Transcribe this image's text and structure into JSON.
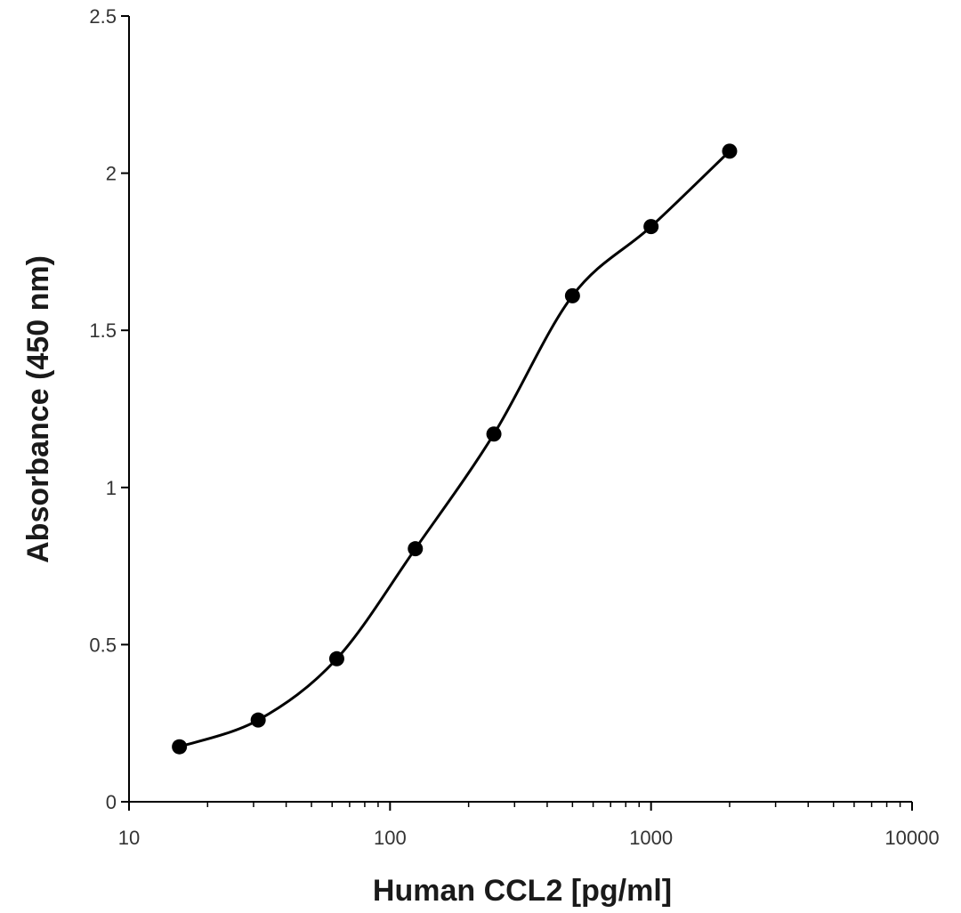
{
  "chart_data": {
    "type": "line",
    "title": "",
    "xlabel": "Human CCL2 [pg/ml]",
    "ylabel": "Absorbance (450 nm)",
    "x_scale": "log",
    "xlim": [
      10,
      10000
    ],
    "ylim": [
      0,
      2.5
    ],
    "x_ticks": [
      "10",
      "100",
      "1000",
      "10000"
    ],
    "y_ticks": [
      "0",
      "0.5",
      "1",
      "1.5",
      "2",
      "2.5"
    ],
    "grid": false,
    "legend": "none",
    "line_color": "#000000",
    "series": [
      {
        "x": [
          15.6,
          31.25,
          62.5,
          125,
          250,
          500,
          1000,
          2000
        ],
        "y": [
          0.175,
          0.26,
          0.455,
          0.805,
          1.17,
          1.61,
          1.83,
          2.07
        ]
      }
    ]
  }
}
